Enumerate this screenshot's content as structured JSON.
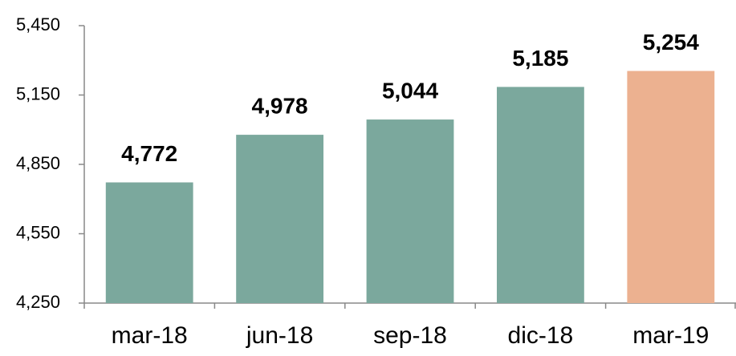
{
  "chart_data": {
    "type": "bar",
    "categories": [
      "mar-18",
      "jun-18",
      "sep-18",
      "dic-18",
      "mar-19"
    ],
    "values": [
      4772,
      4978,
      5044,
      5185,
      5254
    ],
    "value_labels": [
      "4,772",
      "4,978",
      "5,044",
      "5,185",
      "5,254"
    ],
    "colors": [
      "#7ba89d",
      "#7ba89d",
      "#7ba89d",
      "#7ba89d",
      "#ecb190"
    ],
    "ylim": [
      4250,
      5450
    ],
    "yticks": [
      {
        "value": 4250,
        "label": "4,250"
      },
      {
        "value": 4550,
        "label": "4,550"
      },
      {
        "value": 4850,
        "label": "4,850"
      },
      {
        "value": 5150,
        "label": "5,150"
      },
      {
        "value": 5450,
        "label": "5,450"
      }
    ],
    "grid": false
  }
}
